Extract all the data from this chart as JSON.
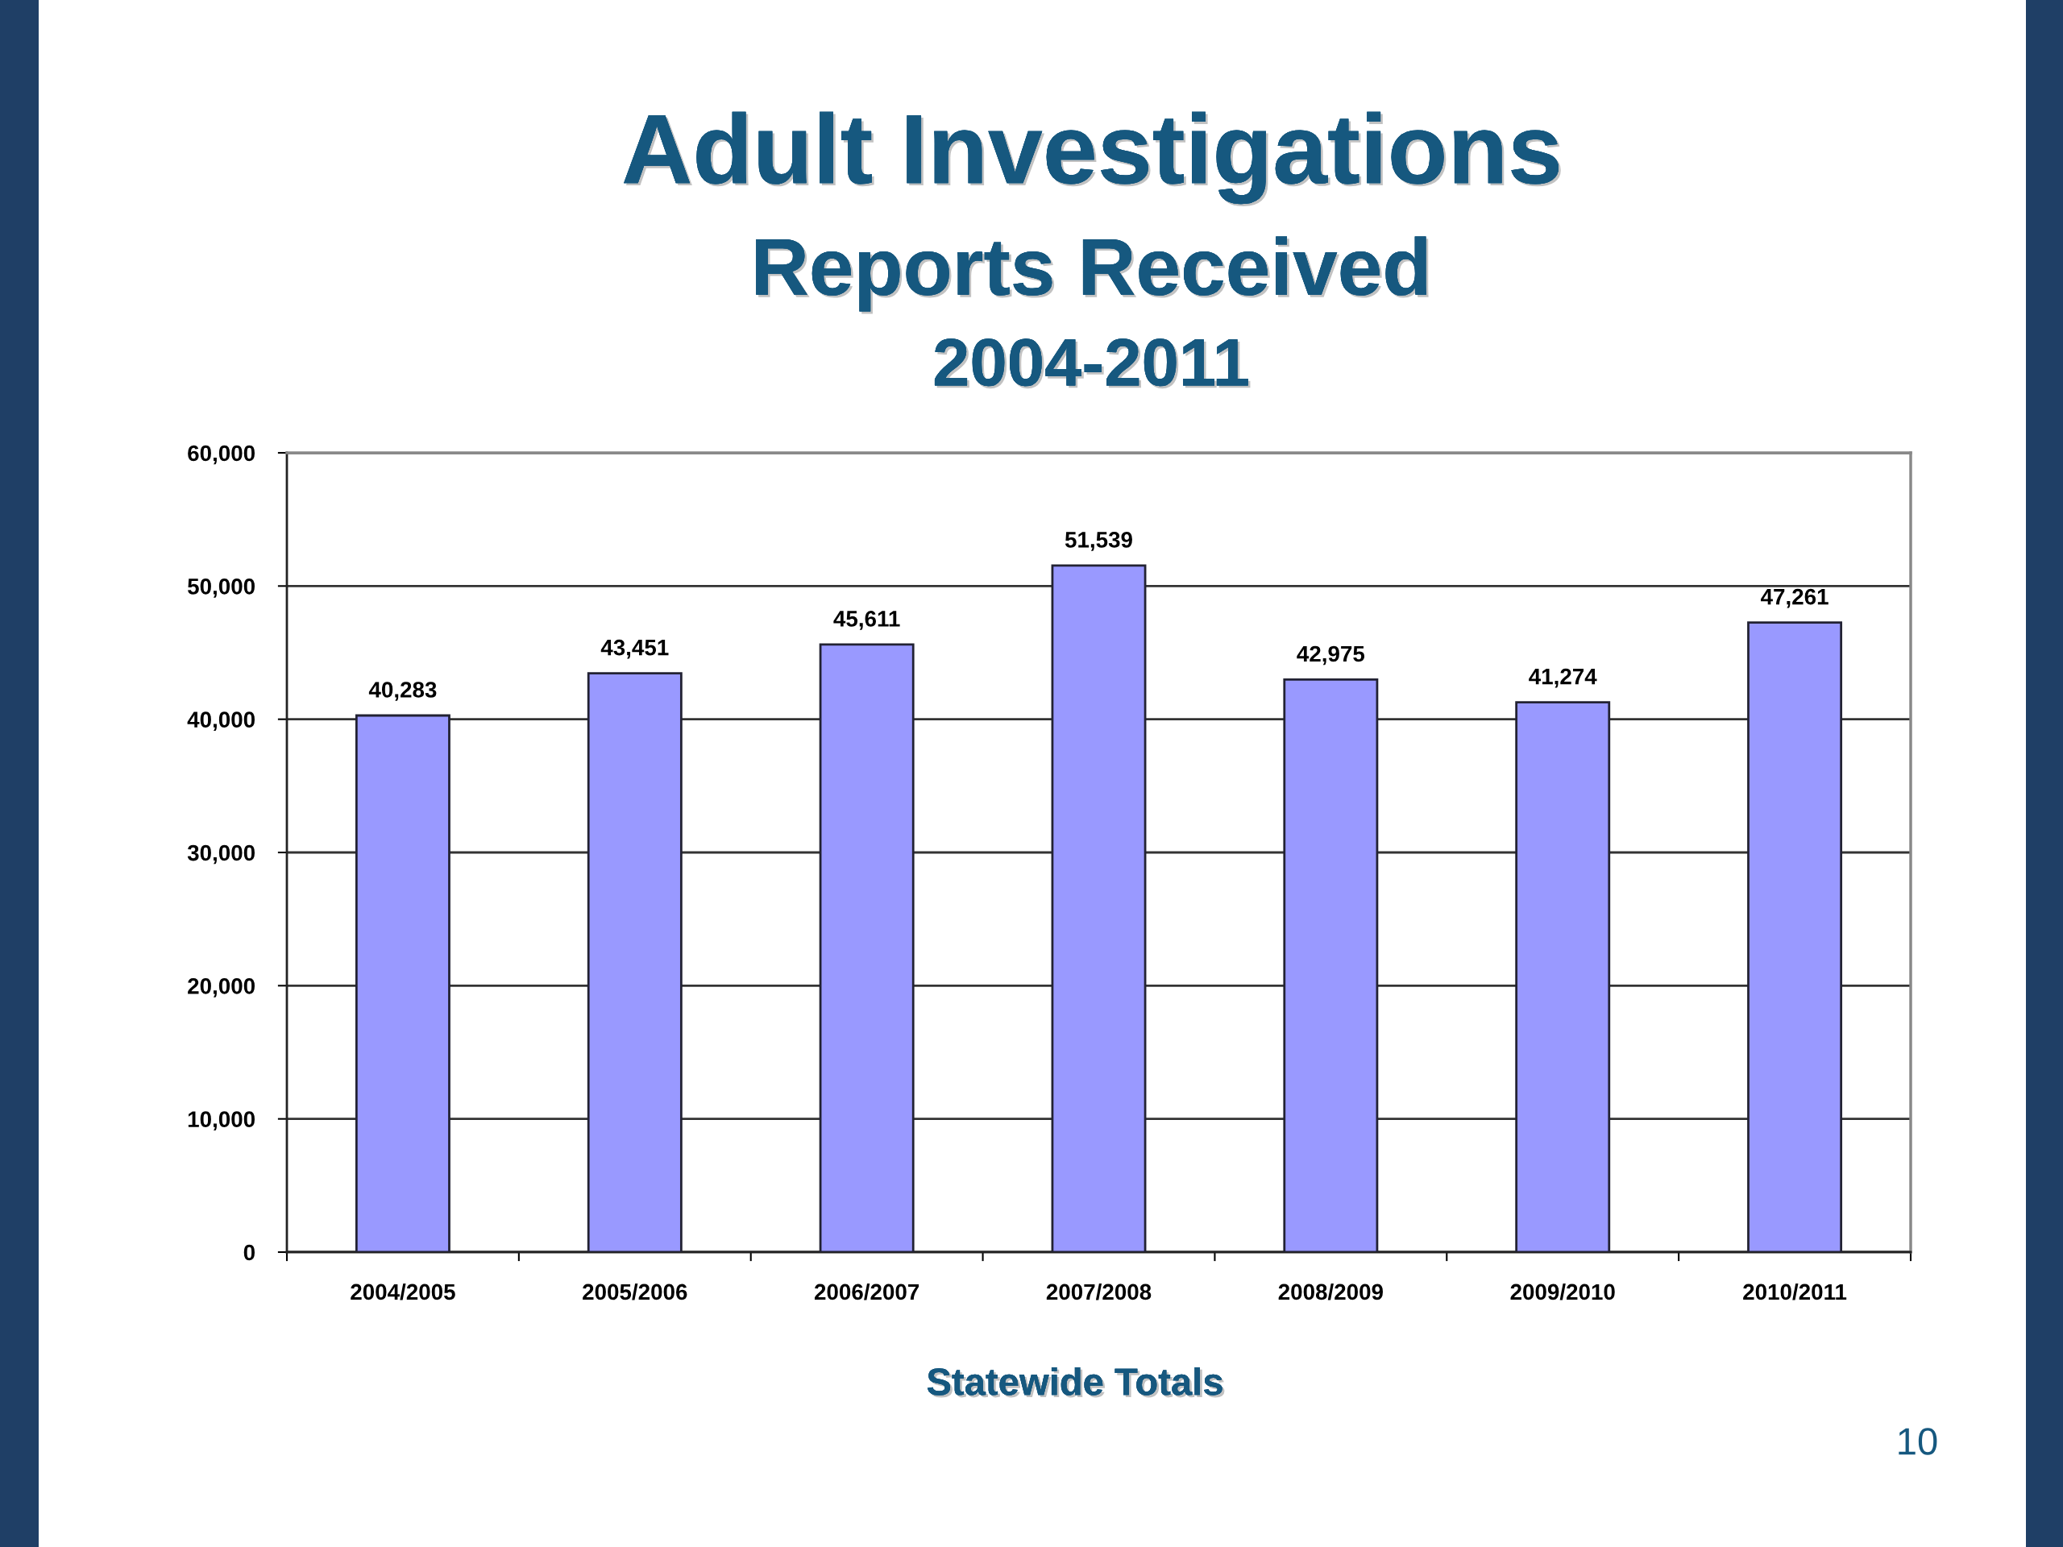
{
  "chart_data": {
    "type": "bar",
    "title": "Adult Investigations",
    "subtitle": "Reports Received\n2004-2011",
    "xlabel": "Statewide Totals",
    "categories": [
      "2004/2005",
      "2005/2006",
      "2006/2007",
      "2007/2008",
      "2008/2009",
      "2009/2010",
      "2010/2011"
    ],
    "values": [
      40283,
      43451,
      45611,
      51539,
      42975,
      41274,
      47261
    ],
    "value_labels": [
      "40,283",
      "43,451",
      "45,611",
      "51,539",
      "42,975",
      "41,274",
      "47,261"
    ],
    "color": "#9999ff",
    "ylim": [
      0,
      60000
    ],
    "yticks": [
      0,
      {
        "value": 10000,
        "label": "10,000"
      },
      {
        "value": 20000,
        "label": "20,000"
      },
      {
        "value": 30000,
        "label": "30,000"
      },
      {
        "value": 40000,
        "label": "40,000"
      },
      {
        "value": 50000,
        "label": "50,000"
      },
      {
        "value": 60000,
        "label": "60,000"
      }
    ],
    "grid": "y",
    "annotations": [
      "10"
    ]
  }
}
